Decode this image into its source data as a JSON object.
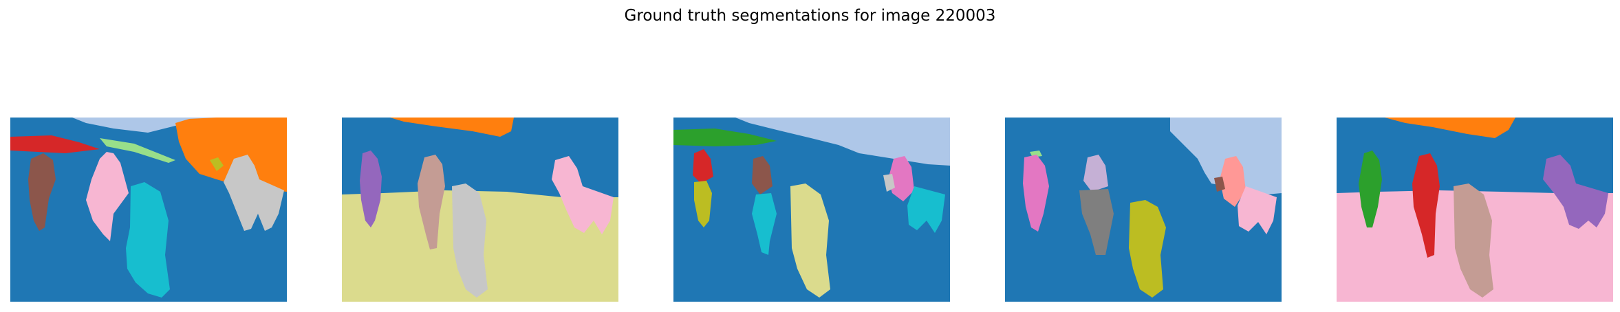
{
  "figure": {
    "title": "Ground truth segmentations for image 220003"
  },
  "colors": {
    "blue": "#1f77b4",
    "orange": "#ff7f0e",
    "green": "#2ca02c",
    "red": "#d62728",
    "purple": "#9467bd",
    "brown": "#8c564b",
    "pink": "#e377c2",
    "gray": "#7f7f7f",
    "olive": "#bcbd22",
    "cyan": "#17becf",
    "light_blue": "#aec7e8",
    "light_green": "#98df8a",
    "light_red": "#ff9896",
    "light_purple": "#c5b0d5",
    "light_brown": "#c49c94",
    "light_pink": "#f7b6d2",
    "light_gray": "#c7c7c7",
    "light_olive": "#dbdb8d"
  },
  "chart_data": {
    "type": "image-grid",
    "colormap": "tab20",
    "axis": "off",
    "panels": [
      {
        "regions": [
          "blue",
          "light_blue",
          "orange",
          "red",
          "light_green",
          "brown",
          "light_pink",
          "cyan",
          "light_gray",
          "olive"
        ]
      },
      {
        "regions": [
          "blue",
          "orange",
          "light_olive",
          "purple",
          "light_brown",
          "light_gray",
          "light_pink"
        ]
      },
      {
        "regions": [
          "blue",
          "light_blue",
          "green",
          "red",
          "olive",
          "brown",
          "cyan",
          "light_olive",
          "pink",
          "light_gray"
        ]
      },
      {
        "regions": [
          "blue",
          "light_blue",
          "light_green",
          "pink",
          "light_purple",
          "gray",
          "olive",
          "light_red",
          "brown",
          "light_pink"
        ]
      },
      {
        "regions": [
          "blue",
          "orange",
          "light_pink",
          "green",
          "red",
          "light_brown",
          "purple"
        ]
      }
    ]
  }
}
